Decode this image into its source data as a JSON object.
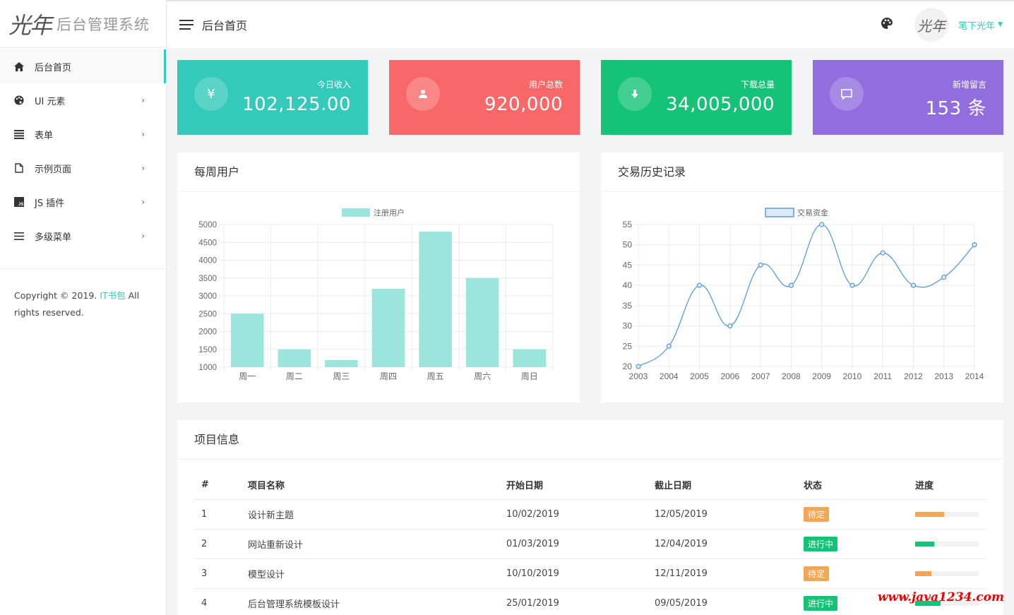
{
  "brand": {
    "mark": "光年",
    "name": "后台管理系统"
  },
  "header": {
    "title": "后台首页",
    "user": "笔下光年",
    "avatar_text": "光年"
  },
  "sidebar": {
    "items": [
      {
        "label": "后台首页",
        "icon": "home-icon"
      },
      {
        "label": "UI 元素",
        "icon": "palette-icon"
      },
      {
        "label": "表单",
        "icon": "list-icon"
      },
      {
        "label": "示例页面",
        "icon": "file-icon"
      },
      {
        "label": "JS 插件",
        "icon": "js-icon"
      },
      {
        "label": "多级菜单",
        "icon": "menu-icon"
      }
    ],
    "copyright_pre": "Copyright © 2019. ",
    "copyright_link": "IT书包",
    "copyright_post": " All rights reserved."
  },
  "stats": [
    {
      "label": "今日收入",
      "value": "102,125.00",
      "icon": "yen-icon",
      "color": "#33cabb"
    },
    {
      "label": "用户总数",
      "value": "920,000",
      "icon": "user-icon",
      "color": "#f96868"
    },
    {
      "label": "下载总量",
      "value": "34,005,000",
      "icon": "download-icon",
      "color": "#15c377"
    },
    {
      "label": "新增留言",
      "value": "153 条",
      "icon": "comment-icon",
      "color": "#926dde"
    }
  ],
  "panels": {
    "weekly_users": "每周用户",
    "transactions": "交易历史记录",
    "projects": "项目信息"
  },
  "chart_data": [
    {
      "type": "bar",
      "title": "每周用户",
      "categories": [
        "周一",
        "周二",
        "周三",
        "周四",
        "周五",
        "周六",
        "周日"
      ],
      "series": [
        {
          "name": "注册用户",
          "values": [
            2500,
            1500,
            1200,
            3200,
            4800,
            3500,
            1500
          ]
        }
      ],
      "ylim": [
        1000,
        5000
      ],
      "yticks": [
        1000,
        1500,
        2000,
        2500,
        3000,
        3500,
        4000,
        4500,
        5000
      ],
      "color": "#9ce5dd",
      "legend": "top"
    },
    {
      "type": "line",
      "title": "交易历史记录",
      "x": [
        "2003",
        "2004",
        "2005",
        "2006",
        "2007",
        "2008",
        "2009",
        "2010",
        "2011",
        "2012",
        "2013",
        "2014"
      ],
      "series": [
        {
          "name": "交易资金",
          "values": [
            20,
            25,
            40,
            30,
            45,
            40,
            55,
            40,
            48,
            40,
            42,
            50
          ]
        }
      ],
      "ylim": [
        20,
        55
      ],
      "yticks": [
        20,
        25,
        30,
        35,
        40,
        45,
        50,
        55
      ],
      "color": "#5b9bd5",
      "legend": "top"
    }
  ],
  "table": {
    "headers": [
      "#",
      "项目名称",
      "开始日期",
      "截止日期",
      "状态",
      "进度"
    ],
    "rows": [
      {
        "id": "1",
        "name": "设计新主题",
        "start": "10/02/2019",
        "end": "12/05/2019",
        "status": "待定",
        "status_color": "#f3a654",
        "progress": 0.45,
        "progress_color": "#f3a654"
      },
      {
        "id": "2",
        "name": "网站重新设计",
        "start": "01/03/2019",
        "end": "12/04/2019",
        "status": "进行中",
        "status_color": "#15c377",
        "progress": 0.3,
        "progress_color": "#15c377"
      },
      {
        "id": "3",
        "name": "模型设计",
        "start": "10/10/2019",
        "end": "12/11/2019",
        "status": "待定",
        "status_color": "#f3a654",
        "progress": 0.25,
        "progress_color": "#f3a654"
      },
      {
        "id": "4",
        "name": "后台管理系统模板设计",
        "start": "25/01/2019",
        "end": "09/05/2019",
        "status": "进行中",
        "status_color": "#15c377",
        "progress": 0.4,
        "progress_color": "#15c377"
      }
    ]
  },
  "watermark": "www.java1234.com"
}
